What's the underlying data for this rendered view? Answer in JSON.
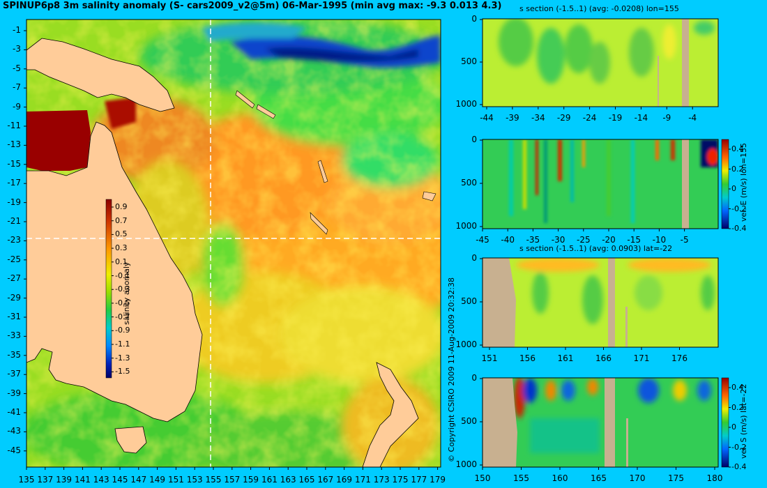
{
  "title": "SPINUP6p8 3m salinity anomaly (S- cars2009_v2@5m) 06-Mar-1995 (min avg max: -9.3 0.013 4.3)",
  "copyright": "© Copyright CSIRO 2009 11-Aug-2009 20:32:38",
  "colors": {
    "background": "#00ccff",
    "land": "#ffcc99",
    "section_land": "#c8b090",
    "green": "#33cc33",
    "yellow": "#eeee22",
    "orange": "#ee9922",
    "red": "#cc2200",
    "dark_red": "#990000",
    "blue": "#1133cc",
    "dark_blue": "#001166"
  },
  "map": {
    "x_ticks": [
      "135",
      "137",
      "139",
      "141",
      "143",
      "145",
      "147",
      "149",
      "151",
      "153",
      "155",
      "157",
      "159",
      "161",
      "163",
      "165",
      "167",
      "169",
      "171",
      "173",
      "175",
      "177",
      "179"
    ],
    "y_ticks": [
      "-1",
      "-3",
      "-5",
      "-7",
      "-9",
      "-11",
      "-13",
      "-15",
      "-17",
      "-19",
      "-21",
      "-23",
      "-25",
      "-27",
      "-29",
      "-31",
      "-33",
      "-35",
      "-37",
      "-39",
      "-41",
      "-43",
      "-45"
    ],
    "colorbar": {
      "label": "salinity anomaly",
      "ticks": [
        "0.9",
        "0.7",
        "0.5",
        "0.3",
        "0.1",
        "-0.1",
        "-0.3",
        "-0.5",
        "-0.7",
        "-0.9",
        "-1.1",
        "-1.3",
        "-1.5"
      ]
    }
  },
  "panels": [
    {
      "title": "s section (-1.5..1) (avg: -0.0208) lon=155",
      "x_ticks": [
        "-44",
        "-39",
        "-34",
        "-29",
        "-24",
        "-19",
        "-14",
        "-9",
        "-4"
      ],
      "y_ticks": [
        "0",
        "500",
        "1000"
      ],
      "colorbar": null
    },
    {
      "title": "",
      "x_ticks": [
        "-45",
        "-40",
        "-35",
        "-30",
        "-25",
        "-20",
        "-15",
        "-10",
        "-5"
      ],
      "y_ticks": [
        "0",
        "500",
        "1000"
      ],
      "colorbar": {
        "label": "vel. E (m/s) lon=155",
        "ticks": [
          "0.4",
          "0.2",
          "0",
          "-0.2",
          "-0.4"
        ]
      }
    },
    {
      "title": "s section (-1.5..1) (avg: 0.0903) lat=-22",
      "x_ticks": [
        "151",
        "156",
        "161",
        "166",
        "171",
        "176"
      ],
      "y_ticks": [
        "0",
        "500",
        "1000"
      ],
      "colorbar": null
    },
    {
      "title": "",
      "x_ticks": [
        "150",
        "155",
        "160",
        "165",
        "170",
        "175",
        "180"
      ],
      "y_ticks": [
        "0",
        "500",
        "1000"
      ],
      "colorbar": {
        "label": "vel. S (m/s) lat=-22",
        "ticks": [
          "0.4",
          "0.2",
          "0",
          "-0.2",
          "-0.4"
        ]
      }
    }
  ]
}
